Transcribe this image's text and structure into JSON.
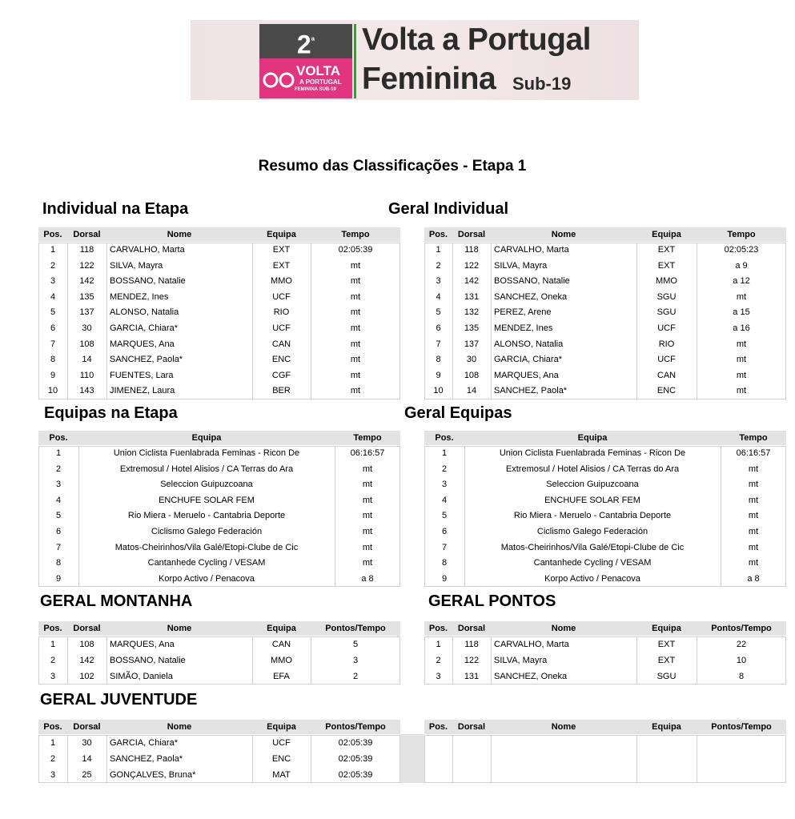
{
  "header": {
    "logo": {
      "number": "2",
      "ordinal": "ª",
      "brand": "VOLTA",
      "brand_sub": "A PORTUGAL",
      "brand_tag": "FEMININA SUB-19"
    },
    "name_line1": "Volta a Portugal",
    "name_line2": "Feminina",
    "name_suffix": "Sub-19"
  },
  "title": "Resumo das Classificações - Etapa 1",
  "sections": [
    {
      "title": "Individual na Etapa",
      "columns": [
        "Pos.",
        "Dorsal",
        "Nome",
        "Equipa",
        "Tempo"
      ],
      "rows": [
        [
          "1",
          "118",
          "CARVALHO, Marta",
          "EXT",
          "02:05:39"
        ],
        [
          "2",
          "122",
          "SILVA, Mayra",
          "EXT",
          "mt"
        ],
        [
          "3",
          "142",
          "BOSSANO, Natalie",
          "MMO",
          "mt"
        ],
        [
          "4",
          "135",
          "MENDEZ, Ines",
          "UCF",
          "mt"
        ],
        [
          "5",
          "137",
          "ALONSO, Natalia",
          "RIO",
          "mt"
        ],
        [
          "6",
          "30",
          "GARCIA, Chiara*",
          "UCF",
          "mt"
        ],
        [
          "7",
          "108",
          "MARQUES, Ana",
          "CAN",
          "mt"
        ],
        [
          "8",
          "14",
          "SANCHEZ, Paola*",
          "ENC",
          "mt"
        ],
        [
          "9",
          "110",
          "FUENTES, Lara",
          "CGF",
          "mt"
        ],
        [
          "10",
          "143",
          "JIMENEZ, Laura",
          "BER",
          "mt"
        ]
      ]
    },
    {
      "title": "Geral Individual",
      "columns": [
        "Pos.",
        "Dorsal",
        "Nome",
        "Equipa",
        "Tempo"
      ],
      "rows": [
        [
          "1",
          "118",
          "CARVALHO, Marta",
          "EXT",
          "02:05:23"
        ],
        [
          "2",
          "122",
          "SILVA, Mayra",
          "EXT",
          "a 9"
        ],
        [
          "3",
          "142",
          "BOSSANO, Natalie",
          "MMO",
          "a 12"
        ],
        [
          "4",
          "131",
          "SANCHEZ, Oneka",
          "SGU",
          "mt"
        ],
        [
          "5",
          "132",
          "PEREZ, Arene",
          "SGU",
          "a 15"
        ],
        [
          "6",
          "135",
          "MENDEZ, Ines",
          "UCF",
          "a 16"
        ],
        [
          "7",
          "137",
          "ALONSO, Natalia",
          "RIO",
          "mt"
        ],
        [
          "8",
          "30",
          "GARCIA, Chiara*",
          "UCF",
          "mt"
        ],
        [
          "9",
          "108",
          "MARQUES, Ana",
          "CAN",
          "mt"
        ],
        [
          "10",
          "14",
          "SANCHEZ, Paola*",
          "ENC",
          "mt"
        ]
      ]
    },
    {
      "title": "Equipas na Etapa",
      "columns": [
        "Pos.",
        "Equipa",
        "Tempo"
      ],
      "rows": [
        [
          "1",
          "Union Ciclista Fuenlabrada Feminas - Ricon De",
          "06:16:57"
        ],
        [
          "2",
          "Extremosul / Hotel Alisios / CA Terras do Ara",
          "mt"
        ],
        [
          "3",
          "Seleccion Guipuzcoana",
          "mt"
        ],
        [
          "4",
          "ENCHUFE SOLAR FEM",
          "mt"
        ],
        [
          "5",
          "Rio Miera - Meruelo - Cantabria Deporte",
          "mt"
        ],
        [
          "6",
          "Ciclismo Galego Federación",
          "mt"
        ],
        [
          "7",
          "Matos-Cheirinhos/Vila Galé/Etopi-Clube de Cic",
          "mt"
        ],
        [
          "8",
          "Cantanhede Cycling / VESAM",
          "mt"
        ],
        [
          "9",
          "Korpo Activo / Penacova",
          "a 8"
        ]
      ]
    },
    {
      "title": "Geral Equipas",
      "columns": [
        "Pos.",
        "Equipa",
        "Tempo"
      ],
      "rows": [
        [
          "1",
          "Union Ciclista Fuenlabrada Feminas - Ricon De",
          "06:16:57"
        ],
        [
          "2",
          "Extremosul / Hotel Alisios / CA Terras do Ara",
          "mt"
        ],
        [
          "3",
          "Seleccion Guipuzcoana",
          "mt"
        ],
        [
          "4",
          "ENCHUFE SOLAR FEM",
          "mt"
        ],
        [
          "5",
          "Rio Miera - Meruelo - Cantabria Deporte",
          "mt"
        ],
        [
          "6",
          "Ciclismo Galego Federación",
          "mt"
        ],
        [
          "7",
          "Matos-Cheirinhos/Vila Galé/Etopi-Clube de Cic",
          "mt"
        ],
        [
          "8",
          "Cantanhede Cycling / VESAM",
          "mt"
        ],
        [
          "9",
          "Korpo Activo / Penacova",
          "a 8"
        ]
      ]
    },
    {
      "title": "GERAL MONTANHA",
      "columns": [
        "Pos.",
        "Dorsal",
        "Nome",
        "Equipa",
        "Pontos/Tempo"
      ],
      "rows": [
        [
          "1",
          "108",
          "MARQUES, Ana",
          "CAN",
          "5"
        ],
        [
          "2",
          "142",
          "BOSSANO, Natalie",
          "MMO",
          "3"
        ],
        [
          "3",
          "102",
          "SIMÃO, Daniela",
          "EFA",
          "2"
        ]
      ]
    },
    {
      "title": "GERAL PONTOS",
      "columns": [
        "Pos.",
        "Dorsal",
        "Nome",
        "Equipa",
        "Pontos/Tempo"
      ],
      "rows": [
        [
          "1",
          "118",
          "CARVALHO, Marta",
          "EXT",
          "22"
        ],
        [
          "2",
          "122",
          "SILVA, Mayra",
          "EXT",
          "10"
        ],
        [
          "3",
          "131",
          "SANCHEZ, Oneka",
          "SGU",
          "8"
        ]
      ]
    },
    {
      "title": "GERAL JUVENTUDE",
      "columns": [
        "Pos.",
        "Dorsal",
        "Nome",
        "Equipa",
        "Pontos/Tempo"
      ],
      "rows": [
        [
          "1",
          "30",
          "GARCIA, Chiara*",
          "UCF",
          "02:05:39"
        ],
        [
          "2",
          "14",
          "SANCHEZ, Paola*",
          "ENC",
          "02:05:39"
        ],
        [
          "3",
          "25",
          "GONÇALVES, Bruna*",
          "MAT",
          "02:05:39"
        ]
      ]
    },
    {
      "columns": [
        "Pos.",
        "Dorsal",
        "Nome",
        "Equipa",
        "Pontos/Tempo"
      ],
      "rows": []
    }
  ]
}
